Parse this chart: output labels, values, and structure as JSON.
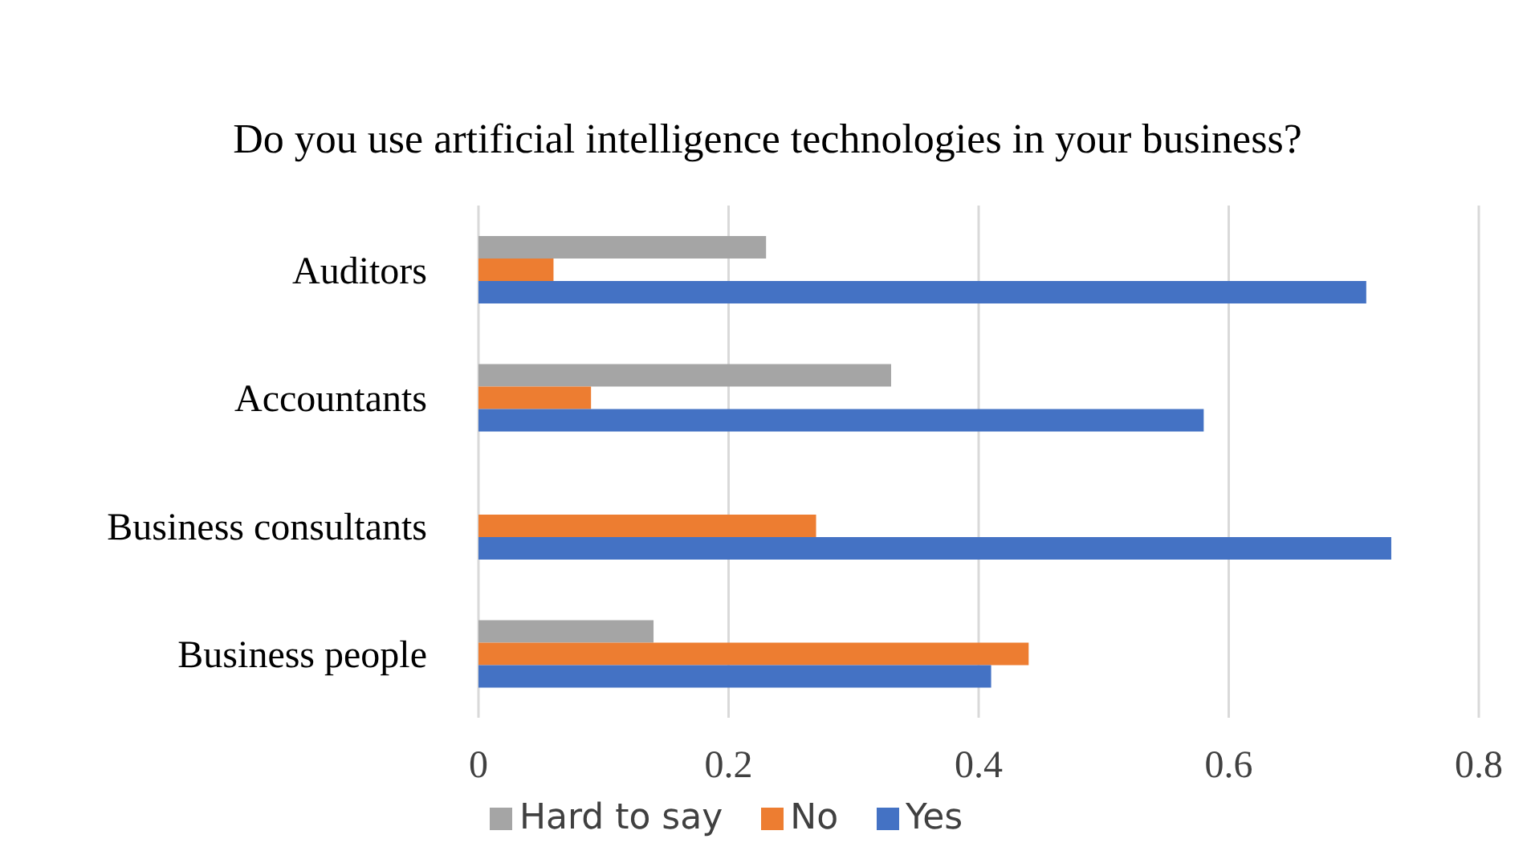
{
  "chart_data": {
    "type": "bar",
    "orientation": "horizontal",
    "title": "Do you use artificial intelligence technologies in your business?",
    "categories": [
      "Auditors",
      "Accountants",
      "Business consultants",
      "Business people"
    ],
    "series": [
      {
        "name": "Hard to say",
        "color": "#a5a5a5",
        "values": [
          0.23,
          0.33,
          null,
          0.14
        ]
      },
      {
        "name": "No",
        "color": "#ed7d31",
        "values": [
          0.06,
          0.09,
          0.27,
          0.44
        ]
      },
      {
        "name": "Yes",
        "color": "#4472c4",
        "values": [
          0.71,
          0.58,
          0.73,
          0.41
        ]
      }
    ],
    "xlim": [
      0,
      0.8
    ],
    "xticks": [
      0,
      0.2,
      0.4,
      0.6,
      0.8
    ],
    "grid": "x",
    "legend": "bottom"
  }
}
